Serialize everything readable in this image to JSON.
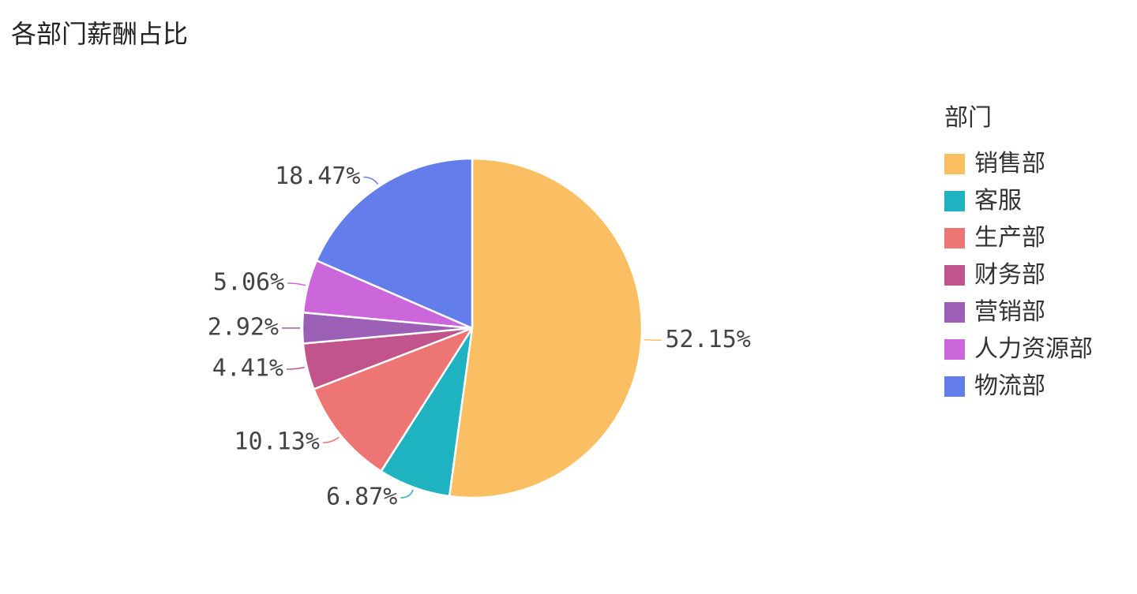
{
  "title": "各部门薪酬占比",
  "legend": {
    "title": "部门"
  },
  "chart_data": {
    "type": "pie",
    "title": "各部门薪酬占比",
    "legend_position": "right",
    "categories": [
      "销售部",
      "客服",
      "生产部",
      "财务部",
      "营销部",
      "人力资源部",
      "物流部"
    ],
    "values": [
      52.15,
      6.87,
      10.13,
      4.41,
      2.92,
      5.06,
      18.47
    ],
    "labels": [
      "52.15%",
      "6.87%",
      "10.13%",
      "4.41%",
      "2.92%",
      "5.06%",
      "18.47%"
    ],
    "colors": [
      "#FBBF63",
      "#1FB3C1",
      "#ED7675",
      "#C1548A",
      "#9B5FB5",
      "#CB67DB",
      "#637DEA"
    ]
  }
}
